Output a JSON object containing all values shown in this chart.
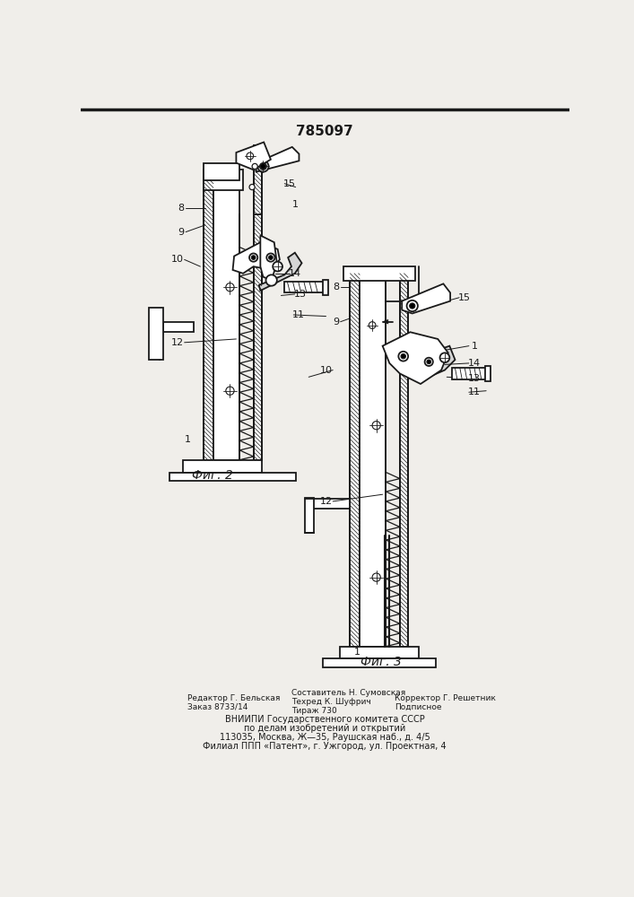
{
  "title": "785097",
  "fig2_label": "Фиг. 2",
  "fig3_label": "Фиг. 3",
  "bg_color": "#f0eeea",
  "line_color": "#1a1a1a",
  "fig_width": 7.07,
  "fig_height": 10.0,
  "dpi": 100,
  "footer": {
    "editor": "Редактор Г. Бельская",
    "order": "Заказ 8733/14",
    "composer": "Составитель Н. Сумовская",
    "techred": "Техред К. Шуфрич",
    "tirazh": "Тираж 730",
    "corrector": "Корректор Г. Решетник",
    "podpisnoe": "Подписное",
    "org1": "ВНИИПИ Государственного комитета СССР",
    "org2": "по делам изобретений и открытий",
    "org3": "113035, Москва, Ж—35, Раушская наб., д. 4/5",
    "org4": "Филиал ППП «Патент», г. Ужгород, ул. Проектная, 4"
  }
}
